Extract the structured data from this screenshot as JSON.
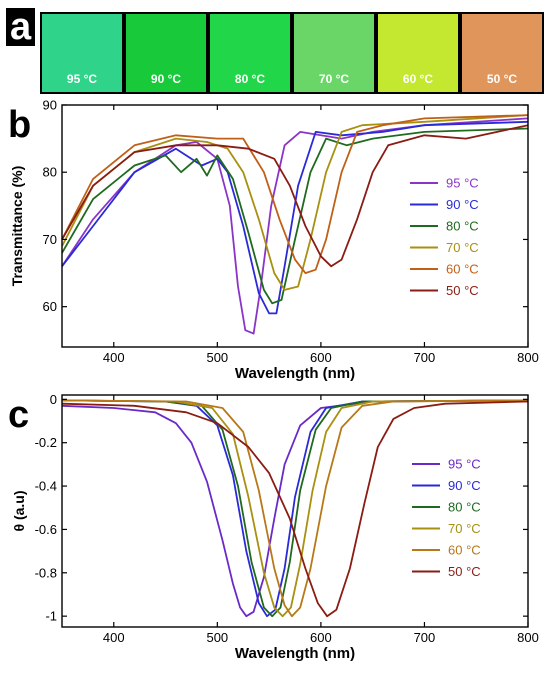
{
  "panel_a": {
    "letter": "a",
    "swatches": [
      {
        "label": "95 °C",
        "color": "#2fd38a"
      },
      {
        "label": "90 °C",
        "color": "#18c93a"
      },
      {
        "label": "80 °C",
        "color": "#22d64a"
      },
      {
        "label": "70 °C",
        "color": "#6ad668"
      },
      {
        "label": "60 °C",
        "color": "#c4e830"
      },
      {
        "label": "50 °C",
        "color": "#e0955a"
      }
    ]
  },
  "chart_data": [
    {
      "panel": "b",
      "type": "line",
      "xlabel": "Wavelength (nm)",
      "ylabel": "Transmittance (%)",
      "xlim": [
        350,
        800
      ],
      "ylim": [
        54,
        90
      ],
      "xticks": [
        400,
        500,
        600,
        700,
        800
      ],
      "yticks": [
        60,
        70,
        80,
        90
      ],
      "grid": false,
      "legend_position": "right",
      "series": [
        {
          "name": "95 °C",
          "color": "#8a35c8",
          "points": [
            [
              350,
              66
            ],
            [
              380,
              73
            ],
            [
              420,
              80
            ],
            [
              460,
              84
            ],
            [
              480,
              84.5
            ],
            [
              500,
              82
            ],
            [
              512,
              75
            ],
            [
              520,
              63
            ],
            [
              527,
              56.5
            ],
            [
              535,
              56
            ],
            [
              542,
              63
            ],
            [
              552,
              75
            ],
            [
              565,
              84
            ],
            [
              580,
              86
            ],
            [
              620,
              85
            ],
            [
              650,
              86
            ],
            [
              700,
              87
            ],
            [
              800,
              88
            ]
          ]
        },
        {
          "name": "90 °C",
          "color": "#2a2ad8",
          "points": [
            [
              350,
              66
            ],
            [
              380,
              72
            ],
            [
              420,
              80
            ],
            [
              460,
              83.5
            ],
            [
              485,
              81
            ],
            [
              500,
              82
            ],
            [
              510,
              80
            ],
            [
              525,
              72
            ],
            [
              540,
              62
            ],
            [
              550,
              59
            ],
            [
              557,
              59
            ],
            [
              565,
              66
            ],
            [
              578,
              78
            ],
            [
              595,
              86
            ],
            [
              620,
              85.5
            ],
            [
              660,
              86
            ],
            [
              700,
              87
            ],
            [
              800,
              87.5
            ]
          ]
        },
        {
          "name": "80 °C",
          "color": "#1f6a1f",
          "points": [
            [
              350,
              68
            ],
            [
              380,
              76
            ],
            [
              420,
              81
            ],
            [
              450,
              82.5
            ],
            [
              465,
              80
            ],
            [
              480,
              82
            ],
            [
              490,
              79.5
            ],
            [
              500,
              82.5
            ],
            [
              515,
              79
            ],
            [
              530,
              71
            ],
            [
              545,
              62.5
            ],
            [
              553,
              60.5
            ],
            [
              562,
              61
            ],
            [
              575,
              70
            ],
            [
              590,
              80
            ],
            [
              605,
              85
            ],
            [
              625,
              84
            ],
            [
              650,
              85
            ],
            [
              700,
              86
            ],
            [
              800,
              86.5
            ]
          ]
        },
        {
          "name": "70 °C",
          "color": "#a89010",
          "points": [
            [
              350,
              69
            ],
            [
              380,
              78
            ],
            [
              420,
              83
            ],
            [
              460,
              85
            ],
            [
              490,
              84.5
            ],
            [
              510,
              83.5
            ],
            [
              525,
              80
            ],
            [
              540,
              73
            ],
            [
              555,
              65
            ],
            [
              565,
              62.5
            ],
            [
              578,
              63
            ],
            [
              590,
              70
            ],
            [
              605,
              80
            ],
            [
              620,
              86
            ],
            [
              640,
              87
            ],
            [
              700,
              87.5
            ],
            [
              800,
              88.5
            ]
          ]
        },
        {
          "name": "60 °C",
          "color": "#c06018",
          "points": [
            [
              350,
              70
            ],
            [
              380,
              79
            ],
            [
              420,
              84
            ],
            [
              460,
              85.5
            ],
            [
              500,
              85
            ],
            [
              525,
              85
            ],
            [
              545,
              80
            ],
            [
              560,
              73
            ],
            [
              575,
              67
            ],
            [
              585,
              65
            ],
            [
              595,
              65.5
            ],
            [
              605,
              70
            ],
            [
              620,
              80
            ],
            [
              635,
              86
            ],
            [
              660,
              87
            ],
            [
              700,
              88
            ],
            [
              800,
              88.5
            ]
          ]
        },
        {
          "name": "50 °C",
          "color": "#8a1c14",
          "points": [
            [
              350,
              70
            ],
            [
              380,
              78
            ],
            [
              420,
              83
            ],
            [
              460,
              84
            ],
            [
              500,
              84
            ],
            [
              530,
              83.5
            ],
            [
              555,
              82
            ],
            [
              570,
              78
            ],
            [
              585,
              72
            ],
            [
              600,
              67.5
            ],
            [
              610,
              66
            ],
            [
              620,
              67
            ],
            [
              635,
              73
            ],
            [
              650,
              80
            ],
            [
              665,
              84
            ],
            [
              700,
              85.5
            ],
            [
              740,
              85
            ],
            [
              800,
              87
            ]
          ]
        }
      ]
    },
    {
      "panel": "c",
      "type": "line",
      "xlabel": "Wavelength (nm)",
      "ylabel": "θ (a.u)",
      "xlim": [
        350,
        800
      ],
      "ylim": [
        -1.05,
        0.02
      ],
      "xticks": [
        400,
        500,
        600,
        700,
        800
      ],
      "yticks": [
        0,
        -0.2,
        -0.4,
        -0.6,
        -0.8,
        -1
      ],
      "grid": false,
      "legend_position": "right",
      "series": [
        {
          "name": "95 °C",
          "color": "#6a2ac8",
          "points": [
            [
              350,
              -0.03
            ],
            [
              400,
              -0.04
            ],
            [
              440,
              -0.06
            ],
            [
              460,
              -0.11
            ],
            [
              475,
              -0.2
            ],
            [
              490,
              -0.38
            ],
            [
              505,
              -0.65
            ],
            [
              515,
              -0.85
            ],
            [
              522,
              -0.96
            ],
            [
              528,
              -1.0
            ],
            [
              535,
              -0.98
            ],
            [
              545,
              -0.82
            ],
            [
              555,
              -0.55
            ],
            [
              565,
              -0.3
            ],
            [
              580,
              -0.12
            ],
            [
              600,
              -0.04
            ],
            [
              650,
              -0.01
            ],
            [
              800,
              -0.005
            ]
          ]
        },
        {
          "name": "90 °C",
          "color": "#2a2ad8",
          "points": [
            [
              350,
              -0.005
            ],
            [
              450,
              -0.01
            ],
            [
              480,
              -0.03
            ],
            [
              500,
              -0.12
            ],
            [
              515,
              -0.35
            ],
            [
              528,
              -0.7
            ],
            [
              540,
              -0.94
            ],
            [
              548,
              -1.0
            ],
            [
              556,
              -0.97
            ],
            [
              565,
              -0.78
            ],
            [
              575,
              -0.45
            ],
            [
              590,
              -0.15
            ],
            [
              605,
              -0.04
            ],
            [
              640,
              -0.01
            ],
            [
              800,
              -0.005
            ]
          ]
        },
        {
          "name": "80 °C",
          "color": "#1f6a1f",
          "points": [
            [
              350,
              -0.005
            ],
            [
              450,
              -0.01
            ],
            [
              485,
              -0.03
            ],
            [
              505,
              -0.14
            ],
            [
              520,
              -0.4
            ],
            [
              533,
              -0.75
            ],
            [
              545,
              -0.96
            ],
            [
              553,
              -1.0
            ],
            [
              561,
              -0.96
            ],
            [
              570,
              -0.75
            ],
            [
              580,
              -0.42
            ],
            [
              595,
              -0.14
            ],
            [
              610,
              -0.04
            ],
            [
              640,
              -0.01
            ],
            [
              800,
              -0.005
            ]
          ]
        },
        {
          "name": "70 °C",
          "color": "#a89010",
          "points": [
            [
              350,
              -0.005
            ],
            [
              460,
              -0.01
            ],
            [
              495,
              -0.04
            ],
            [
              515,
              -0.16
            ],
            [
              530,
              -0.45
            ],
            [
              545,
              -0.8
            ],
            [
              555,
              -0.96
            ],
            [
              563,
              -1.0
            ],
            [
              571,
              -0.96
            ],
            [
              580,
              -0.76
            ],
            [
              592,
              -0.42
            ],
            [
              605,
              -0.15
            ],
            [
              620,
              -0.04
            ],
            [
              650,
              -0.01
            ],
            [
              800,
              -0.005
            ]
          ]
        },
        {
          "name": "60 °C",
          "color": "#b87818",
          "points": [
            [
              350,
              -0.005
            ],
            [
              470,
              -0.01
            ],
            [
              505,
              -0.04
            ],
            [
              525,
              -0.15
            ],
            [
              540,
              -0.42
            ],
            [
              555,
              -0.78
            ],
            [
              565,
              -0.95
            ],
            [
              572,
              -1.0
            ],
            [
              580,
              -0.96
            ],
            [
              590,
              -0.78
            ],
            [
              605,
              -0.4
            ],
            [
              620,
              -0.13
            ],
            [
              640,
              -0.03
            ],
            [
              670,
              -0.01
            ],
            [
              800,
              -0.005
            ]
          ]
        },
        {
          "name": "50 °C",
          "color": "#8a1c14",
          "points": [
            [
              350,
              -0.02
            ],
            [
              420,
              -0.03
            ],
            [
              470,
              -0.06
            ],
            [
              500,
              -0.11
            ],
            [
              530,
              -0.22
            ],
            [
              550,
              -0.34
            ],
            [
              570,
              -0.55
            ],
            [
              585,
              -0.78
            ],
            [
              597,
              -0.94
            ],
            [
              606,
              -1.0
            ],
            [
              615,
              -0.97
            ],
            [
              628,
              -0.78
            ],
            [
              642,
              -0.48
            ],
            [
              655,
              -0.22
            ],
            [
              670,
              -0.09
            ],
            [
              690,
              -0.04
            ],
            [
              720,
              -0.02
            ],
            [
              800,
              -0.01
            ]
          ]
        }
      ]
    }
  ]
}
